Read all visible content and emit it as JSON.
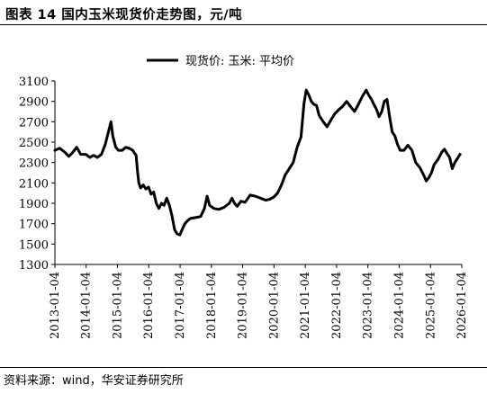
{
  "header": {
    "title": "图表 14 国内玉米现货价走势图，元/吨"
  },
  "footer": {
    "source": "资料来源：wind，华安证券研究所"
  },
  "chart_data": {
    "type": "line",
    "title": "",
    "xlabel": "",
    "ylabel": "",
    "ylim": [
      1300,
      3100
    ],
    "yticks": [
      1300,
      1500,
      1700,
      1900,
      2100,
      2300,
      2500,
      2700,
      2900,
      3100
    ],
    "xticks": [
      "2013-01-04",
      "2014-01-04",
      "2015-01-04",
      "2016-01-04",
      "2017-01-04",
      "2018-01-04",
      "2019-01-04",
      "2020-01-04",
      "2021-01-04",
      "2022-01-04",
      "2023-01-04",
      "2024-01-04",
      "2025-01-04",
      "2026-01-04"
    ],
    "legend": {
      "position": "top-center",
      "line_color": "#000000"
    },
    "grid": false,
    "series": [
      {
        "name": "现货价: 玉米: 平均价",
        "color": "#000000",
        "points": [
          [
            "2013-01-04",
            2420
          ],
          [
            "2013-03-01",
            2440
          ],
          [
            "2013-05-01",
            2400
          ],
          [
            "2013-06-15",
            2360
          ],
          [
            "2013-08-01",
            2400
          ],
          [
            "2013-09-15",
            2450
          ],
          [
            "2013-11-01",
            2380
          ],
          [
            "2014-01-01",
            2380
          ],
          [
            "2014-02-15",
            2350
          ],
          [
            "2014-04-01",
            2370
          ],
          [
            "2014-05-15",
            2350
          ],
          [
            "2014-07-01",
            2380
          ],
          [
            "2014-08-15",
            2480
          ],
          [
            "2014-09-20",
            2600
          ],
          [
            "2014-10-20",
            2700
          ],
          [
            "2014-11-10",
            2560
          ],
          [
            "2014-12-15",
            2450
          ],
          [
            "2015-01-15",
            2420
          ],
          [
            "2015-03-01",
            2420
          ],
          [
            "2015-04-10",
            2450
          ],
          [
            "2015-05-20",
            2440
          ],
          [
            "2015-07-01",
            2420
          ],
          [
            "2015-08-10",
            2370
          ],
          [
            "2015-08-25",
            2220
          ],
          [
            "2015-09-10",
            2100
          ],
          [
            "2015-10-01",
            2050
          ],
          [
            "2015-11-01",
            2080
          ],
          [
            "2015-12-01",
            2040
          ],
          [
            "2016-01-01",
            2060
          ],
          [
            "2016-02-01",
            1990
          ],
          [
            "2016-03-01",
            2010
          ],
          [
            "2016-04-01",
            1900
          ],
          [
            "2016-05-01",
            1850
          ],
          [
            "2016-06-01",
            1900
          ],
          [
            "2016-07-01",
            1880
          ],
          [
            "2016-08-01",
            1950
          ],
          [
            "2016-09-01",
            1880
          ],
          [
            "2016-10-01",
            1780
          ],
          [
            "2016-11-01",
            1640
          ],
          [
            "2016-12-01",
            1600
          ],
          [
            "2017-01-01",
            1590
          ],
          [
            "2017-02-01",
            1650
          ],
          [
            "2017-03-01",
            1700
          ],
          [
            "2017-04-01",
            1730
          ],
          [
            "2017-05-01",
            1750
          ],
          [
            "2017-07-01",
            1760
          ],
          [
            "2017-09-01",
            1770
          ],
          [
            "2017-10-15",
            1850
          ],
          [
            "2017-11-15",
            1970
          ],
          [
            "2017-12-15",
            1880
          ],
          [
            "2018-02-01",
            1850
          ],
          [
            "2018-04-01",
            1840
          ],
          [
            "2018-06-01",
            1860
          ],
          [
            "2018-08-01",
            1900
          ],
          [
            "2018-09-01",
            1950
          ],
          [
            "2018-10-01",
            1900
          ],
          [
            "2018-11-01",
            1870
          ],
          [
            "2018-12-15",
            1920
          ],
          [
            "2019-02-01",
            1910
          ],
          [
            "2019-04-01",
            1980
          ],
          [
            "2019-06-01",
            1970
          ],
          [
            "2019-08-01",
            1950
          ],
          [
            "2019-10-01",
            1930
          ],
          [
            "2019-11-15",
            1940
          ],
          [
            "2020-01-01",
            1960
          ],
          [
            "2020-02-15",
            2000
          ],
          [
            "2020-04-01",
            2080
          ],
          [
            "2020-05-15",
            2180
          ],
          [
            "2020-07-01",
            2240
          ],
          [
            "2020-08-15",
            2300
          ],
          [
            "2020-10-01",
            2450
          ],
          [
            "2020-11-15",
            2550
          ],
          [
            "2020-12-20",
            2880
          ],
          [
            "2021-01-15",
            3010
          ],
          [
            "2021-02-15",
            2960
          ],
          [
            "2021-03-15",
            2900
          ],
          [
            "2021-04-15",
            2870
          ],
          [
            "2021-05-15",
            2860
          ],
          [
            "2021-06-15",
            2760
          ],
          [
            "2021-08-01",
            2700
          ],
          [
            "2021-09-15",
            2650
          ],
          [
            "2021-11-01",
            2720
          ],
          [
            "2021-12-15",
            2780
          ],
          [
            "2022-02-01",
            2820
          ],
          [
            "2022-03-15",
            2850
          ],
          [
            "2022-05-01",
            2900
          ],
          [
            "2022-06-15",
            2850
          ],
          [
            "2022-08-01",
            2800
          ],
          [
            "2022-09-15",
            2870
          ],
          [
            "2022-11-01",
            2950
          ],
          [
            "2022-12-15",
            3010
          ],
          [
            "2023-01-15",
            2960
          ],
          [
            "2023-02-15",
            2920
          ],
          [
            "2023-03-15",
            2870
          ],
          [
            "2023-04-15",
            2820
          ],
          [
            "2023-05-15",
            2750
          ],
          [
            "2023-06-15",
            2800
          ],
          [
            "2023-07-15",
            2900
          ],
          [
            "2023-08-15",
            2920
          ],
          [
            "2023-09-15",
            2750
          ],
          [
            "2023-10-15",
            2600
          ],
          [
            "2023-11-15",
            2560
          ],
          [
            "2023-12-15",
            2480
          ],
          [
            "2024-01-15",
            2420
          ],
          [
            "2024-03-01",
            2420
          ],
          [
            "2024-04-15",
            2470
          ],
          [
            "2024-06-01",
            2420
          ],
          [
            "2024-07-15",
            2300
          ],
          [
            "2024-09-01",
            2250
          ],
          [
            "2024-10-15",
            2180
          ],
          [
            "2024-11-15",
            2120
          ],
          [
            "2024-12-15",
            2150
          ],
          [
            "2025-01-15",
            2200
          ],
          [
            "2025-02-15",
            2280
          ],
          [
            "2025-04-01",
            2330
          ],
          [
            "2025-05-15",
            2400
          ],
          [
            "2025-06-15",
            2430
          ],
          [
            "2025-07-15",
            2390
          ],
          [
            "2025-08-15",
            2350
          ],
          [
            "2025-09-15",
            2240
          ],
          [
            "2025-10-15",
            2300
          ],
          [
            "2025-11-15",
            2340
          ],
          [
            "2025-12-15",
            2380
          ]
        ]
      }
    ]
  }
}
